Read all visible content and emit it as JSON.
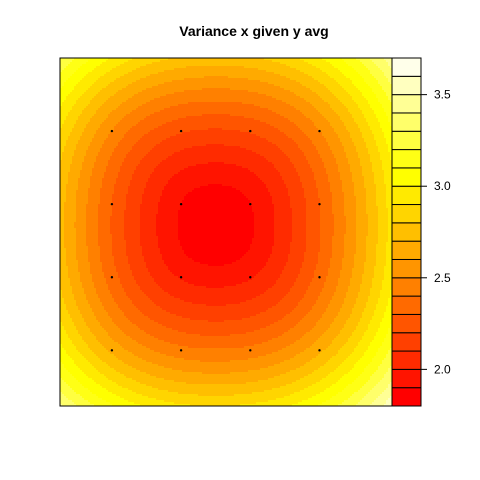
{
  "chart_data": {
    "type": "heatmap",
    "title": "Variance x given y avg",
    "xlabel": "",
    "ylabel": "",
    "axes_shown": false,
    "grid": false,
    "x_range": [
      0,
      1
    ],
    "y_range": [
      0,
      1
    ],
    "z_range": [
      1.8,
      3.7
    ],
    "z_step": 0.1,
    "field": {
      "form": "elliptical bowl",
      "minimum": 1.8,
      "center": [
        0.45,
        0.52
      ],
      "corner_value": 3.7
    },
    "color_levels": [
      "#FF0000",
      "#FF1400",
      "#FF2B00",
      "#FF4000",
      "#FF5500",
      "#FF6A00",
      "#FF8000",
      "#FF9500",
      "#FFAA00",
      "#FFBF00",
      "#FFD500",
      "#FFEA00",
      "#FFFF00",
      "#FFFF15",
      "#FFFF40",
      "#FFFF6A",
      "#FFFF95",
      "#FFFFBF",
      "#FFFFEA"
    ],
    "colorbar": {
      "position": "right",
      "ticks": [
        "2.0",
        "2.5",
        "3.0",
        "3.5"
      ],
      "tick_values": [
        2.0,
        2.5,
        3.0,
        3.5
      ]
    },
    "design_points": {
      "x": [
        0.15,
        0.35,
        0.55,
        0.75
      ],
      "y": [
        0.79,
        0.58,
        0.37,
        0.16
      ]
    }
  }
}
